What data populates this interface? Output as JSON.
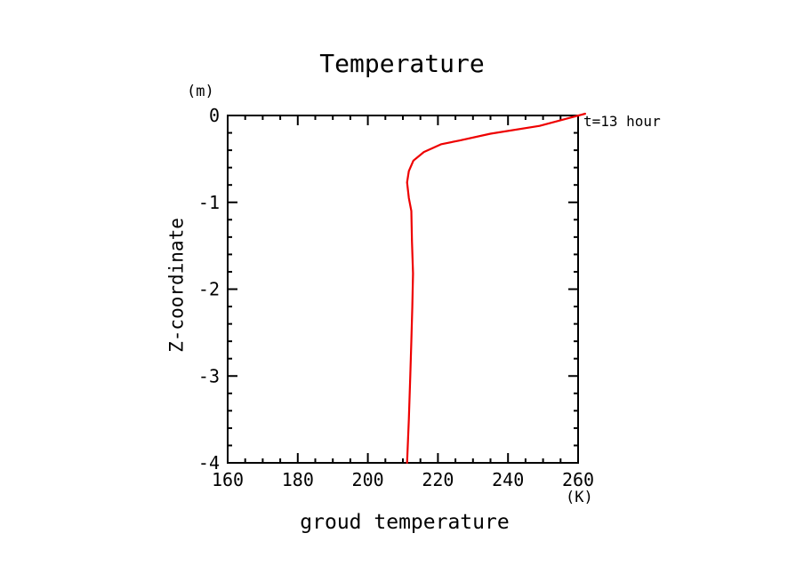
{
  "title": "Temperature",
  "axis": {
    "ylabel": "Z-coordinate",
    "y_unit": "(m)",
    "xlabel": "groud temperature",
    "x_unit": "(K)"
  },
  "annotation": "t=13 hour",
  "chart_data": {
    "type": "line",
    "title": "Temperature",
    "xlabel": "groud temperature (K)",
    "ylabel": "Z-coordinate (m)",
    "xlim": [
      160,
      260
    ],
    "ylim": [
      -4,
      0
    ],
    "x_major_ticks": [
      160,
      180,
      200,
      220,
      240,
      260
    ],
    "x_minor_step": 5,
    "y_major_ticks": [
      0,
      -1,
      -2,
      -3,
      -4
    ],
    "y_minor_step": 0.2,
    "grid": false,
    "legend_position": "outside-top-right",
    "axis_color": "#000000",
    "line_color": "#ee0000",
    "series": [
      {
        "name": "t=13 hour",
        "x": [
          262.0,
          249.0,
          235.0,
          226.0,
          221.0,
          216.0,
          213.0,
          211.7,
          211.2,
          211.7,
          212.4,
          212.6,
          212.9,
          212.7,
          212.4,
          212.1,
          211.7,
          211.2
        ],
        "y": [
          0.02,
          -0.12,
          -0.21,
          -0.29,
          -0.33,
          -0.42,
          -0.52,
          -0.64,
          -0.77,
          -0.95,
          -1.1,
          -1.45,
          -1.82,
          -2.2,
          -2.6,
          -3.0,
          -3.5,
          -4.0
        ]
      }
    ]
  }
}
